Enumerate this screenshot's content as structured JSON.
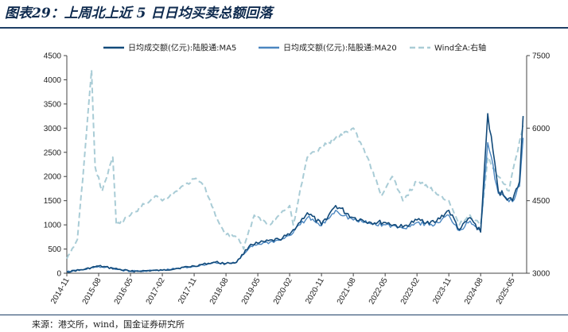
{
  "header": {
    "title": "图表29：上周北上近 5 日日均买卖总额回落"
  },
  "footer": {
    "source": "来源：港交所，wind，国金证券研究所"
  },
  "colors": {
    "ma5": "#124a7a",
    "ma20": "#4a86c0",
    "wind": "#a9ccd6"
  },
  "chart_data": {
    "type": "line",
    "title": "",
    "x_tick_labels": [
      "2014-11",
      "2015-08",
      "2016-05",
      "2017-02",
      "2017-11",
      "2018-08",
      "2019-05",
      "2020-02",
      "2020-11",
      "2021-08",
      "2022-05",
      "2023-02",
      "2023-11",
      "2024-08",
      "2025-05"
    ],
    "y_left": {
      "ticks": [
        0,
        500,
        1000,
        1500,
        2000,
        2500,
        3000,
        3500,
        4000,
        4500
      ],
      "range": [
        0,
        4500
      ]
    },
    "y_right": {
      "ticks": [
        3000,
        4500,
        6000,
        7500
      ],
      "range": [
        3000,
        7500
      ]
    },
    "legend": {
      "position": "top",
      "items": [
        "日均成交额(亿元):陆股通:MA5",
        "日均成交额(亿元):陆股通:MA20",
        "Wind全A:右轴"
      ]
    },
    "series": [
      {
        "name": "日均成交额(亿元):陆股通:MA5",
        "axis": "left",
        "x": [
          "2014-11",
          "2015-04",
          "2015-08",
          "2016-05",
          "2017-02",
          "2017-11",
          "2018-05",
          "2018-08",
          "2018-11",
          "2019-03",
          "2019-05",
          "2019-11",
          "2020-02",
          "2020-07",
          "2020-11",
          "2021-03",
          "2021-08",
          "2022-01",
          "2022-05",
          "2022-10",
          "2023-02",
          "2023-07",
          "2023-11",
          "2024-02",
          "2024-05",
          "2024-08",
          "2024-10",
          "2025-01",
          "2025-05",
          "2025-07",
          "2025-08"
        ],
        "values": [
          30,
          80,
          150,
          40,
          60,
          150,
          230,
          200,
          230,
          600,
          620,
          700,
          800,
          1250,
          1000,
          1400,
          1150,
          1050,
          1050,
          950,
          1100,
          1050,
          1300,
          900,
          1150,
          850,
          3300,
          1700,
          1500,
          1900,
          3250
        ]
      },
      {
        "name": "日均成交额(亿元):陆股通:MA20",
        "axis": "left",
        "x": [
          "2014-11",
          "2015-04",
          "2015-08",
          "2016-05",
          "2017-02",
          "2017-11",
          "2018-05",
          "2018-08",
          "2018-11",
          "2019-03",
          "2019-05",
          "2019-11",
          "2020-02",
          "2020-07",
          "2020-11",
          "2021-03",
          "2021-08",
          "2022-01",
          "2022-05",
          "2022-10",
          "2023-02",
          "2023-07",
          "2023-11",
          "2024-02",
          "2024-05",
          "2024-08",
          "2024-10",
          "2025-01",
          "2025-05",
          "2025-07",
          "2025-08"
        ],
        "values": [
          30,
          75,
          140,
          40,
          60,
          140,
          220,
          200,
          220,
          560,
          600,
          680,
          780,
          1150,
          980,
          1300,
          1100,
          1020,
          1000,
          930,
          1050,
          1000,
          1200,
          880,
          1080,
          900,
          2700,
          1650,
          1480,
          1800,
          2800
        ]
      },
      {
        "name": "Wind全A:右轴",
        "axis": "right",
        "x": [
          "2014-11",
          "2015-02",
          "2015-04",
          "2015-06",
          "2015-07",
          "2015-09",
          "2015-12",
          "2016-01",
          "2016-05",
          "2016-12",
          "2017-02",
          "2017-06",
          "2017-11",
          "2018-02",
          "2018-05",
          "2018-08",
          "2018-11",
          "2019-01",
          "2019-04",
          "2019-08",
          "2019-11",
          "2020-02",
          "2020-03",
          "2020-07",
          "2020-11",
          "2021-03",
          "2021-08",
          "2021-12",
          "2022-04",
          "2022-07",
          "2022-10",
          "2023-02",
          "2023-07",
          "2023-11",
          "2024-02",
          "2024-05",
          "2024-08",
          "2024-10",
          "2025-01",
          "2025-04",
          "2025-06",
          "2025-08"
        ],
        "values": [
          3300,
          3700,
          5400,
          7200,
          5200,
          4700,
          5400,
          4000,
          4200,
          4600,
          4500,
          4700,
          4950,
          4800,
          4200,
          3800,
          3750,
          3500,
          4200,
          4000,
          4200,
          4400,
          4000,
          5400,
          5600,
          5800,
          6000,
          5400,
          4600,
          5000,
          4500,
          4900,
          4700,
          4500,
          4000,
          4200,
          4000,
          5400,
          5000,
          4700,
          5400,
          6050
        ]
      }
    ]
  }
}
